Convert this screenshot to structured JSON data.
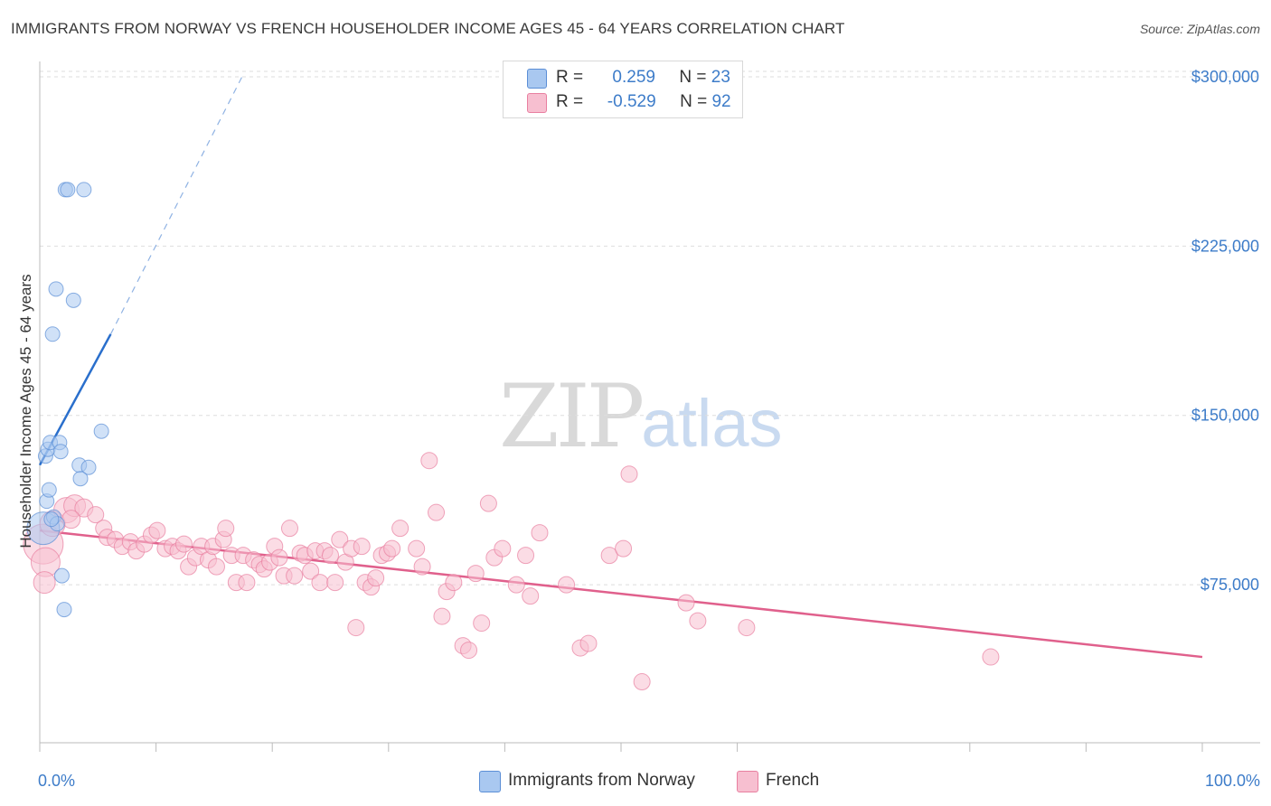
{
  "title": "IMMIGRANTS FROM NORWAY VS FRENCH HOUSEHOLDER INCOME AGES 45 - 64 YEARS CORRELATION CHART",
  "source": "Source: ZipAtlas.com",
  "watermark": {
    "zip": "ZIP",
    "atlas": "atlas"
  },
  "legend": {
    "rows": [
      {
        "r_label": "R =",
        "r_value": "0.259",
        "n_label": "N =",
        "n_value": "23",
        "color": "#a9c8f0",
        "stroke": "#5b8ed6"
      },
      {
        "r_label": "R =",
        "r_value": "-0.529",
        "n_label": "N =",
        "n_value": "92",
        "color": "#f7bfd0",
        "stroke": "#e87fa0"
      }
    ]
  },
  "bottom_legend": [
    {
      "label": "Immigrants from Norway",
      "color": "#a9c8f0",
      "stroke": "#5b8ed6"
    },
    {
      "label": "French",
      "color": "#f7bfd0",
      "stroke": "#e87fa0"
    }
  ],
  "chart_data": {
    "type": "scatter",
    "title": "IMMIGRANTS FROM NORWAY VS FRENCH HOUSEHOLDER INCOME AGES 45 - 64 YEARS CORRELATION CHART",
    "xlabel": "",
    "ylabel": "Householder Income Ages 45 - 64 years",
    "xlim": [
      0,
      100
    ],
    "ylim": [
      5000,
      310000
    ],
    "x_tick_labels": [
      {
        "value": 0,
        "label": "0.0%"
      },
      {
        "value": 100,
        "label": "100.0%"
      }
    ],
    "y_ticks": [
      {
        "value": 75000,
        "label": "$75,000"
      },
      {
        "value": 150000,
        "label": "$150,000"
      },
      {
        "value": 225000,
        "label": "$225,000"
      },
      {
        "value": 300000,
        "label": "$300,000"
      }
    ],
    "series": [
      {
        "name": "Immigrants from Norway",
        "color": "#a9c8f0",
        "stroke": "#5b8ed6",
        "trend": {
          "x0": 0,
          "y0": 128000,
          "x1": 6.1,
          "y1": 186000,
          "dash_to_x": 17.4,
          "dash_to_y": 300000,
          "color": "#2a6fcc"
        },
        "points": [
          [
            0.3,
            100000,
            18
          ],
          [
            0.5,
            132000,
            8
          ],
          [
            0.7,
            135000,
            8
          ],
          [
            0.9,
            138000,
            8
          ],
          [
            0.6,
            112000,
            8
          ],
          [
            0.8,
            117000,
            8
          ],
          [
            1.2,
            105000,
            8
          ],
          [
            1.5,
            102000,
            8
          ],
          [
            1.7,
            138000,
            8
          ],
          [
            1.8,
            134000,
            8
          ],
          [
            1.1,
            186000,
            8
          ],
          [
            1.4,
            206000,
            8
          ],
          [
            2.2,
            250000,
            8
          ],
          [
            2.4,
            250000,
            8
          ],
          [
            3.8,
            250000,
            8
          ],
          [
            2.9,
            201000,
            8
          ],
          [
            3.4,
            128000,
            8
          ],
          [
            4.2,
            127000,
            8
          ],
          [
            3.5,
            122000,
            8
          ],
          [
            5.3,
            143000,
            8
          ],
          [
            1.9,
            79000,
            8
          ],
          [
            2.1,
            64000,
            8
          ],
          [
            1.0,
            104000,
            8
          ]
        ]
      },
      {
        "name": "French",
        "color": "#f7bfd0",
        "stroke": "#e87fa0",
        "trend": {
          "x0": 0,
          "y0": 99000,
          "x1": 100,
          "y1": 43000,
          "color": "#e0608c"
        },
        "points": [
          [
            0.3,
            93000,
            22
          ],
          [
            0.5,
            85000,
            16
          ],
          [
            0.4,
            76000,
            12
          ],
          [
            1.1,
            102000,
            14
          ],
          [
            2.3,
            108000,
            14
          ],
          [
            3.0,
            110000,
            12
          ],
          [
            3.8,
            109000,
            10
          ],
          [
            2.7,
            104000,
            10
          ],
          [
            4.8,
            106000,
            9
          ],
          [
            5.5,
            100000,
            9
          ],
          [
            5.8,
            96000,
            9
          ],
          [
            6.5,
            95000,
            9
          ],
          [
            7.1,
            92000,
            9
          ],
          [
            7.8,
            94000,
            9
          ],
          [
            8.3,
            90000,
            9
          ],
          [
            9.0,
            93000,
            9
          ],
          [
            9.6,
            97000,
            9
          ],
          [
            10.1,
            99000,
            9
          ],
          [
            10.8,
            91000,
            9
          ],
          [
            11.4,
            92000,
            9
          ],
          [
            11.9,
            90000,
            9
          ],
          [
            12.4,
            93000,
            9
          ],
          [
            12.8,
            83000,
            9
          ],
          [
            13.4,
            87000,
            9
          ],
          [
            13.9,
            92000,
            9
          ],
          [
            14.5,
            86000,
            9
          ],
          [
            14.9,
            92000,
            9
          ],
          [
            15.2,
            83000,
            9
          ],
          [
            15.8,
            95000,
            9
          ],
          [
            16.0,
            100000,
            9
          ],
          [
            16.5,
            88000,
            9
          ],
          [
            16.9,
            76000,
            9
          ],
          [
            17.5,
            88000,
            9
          ],
          [
            17.8,
            76000,
            9
          ],
          [
            18.4,
            86000,
            9
          ],
          [
            18.9,
            84000,
            9
          ],
          [
            19.3,
            82000,
            9
          ],
          [
            19.8,
            85000,
            9
          ],
          [
            20.2,
            92000,
            9
          ],
          [
            20.6,
            87000,
            9
          ],
          [
            21.0,
            79000,
            9
          ],
          [
            21.5,
            100000,
            9
          ],
          [
            21.9,
            79000,
            9
          ],
          [
            22.4,
            89000,
            9
          ],
          [
            22.8,
            88000,
            9
          ],
          [
            23.3,
            81000,
            9
          ],
          [
            23.7,
            90000,
            9
          ],
          [
            24.1,
            76000,
            9
          ],
          [
            24.5,
            90000,
            9
          ],
          [
            25.0,
            88000,
            9
          ],
          [
            25.4,
            76000,
            9
          ],
          [
            25.8,
            95000,
            9
          ],
          [
            26.3,
            85000,
            9
          ],
          [
            26.8,
            91000,
            9
          ],
          [
            27.2,
            56000,
            9
          ],
          [
            27.7,
            92000,
            9
          ],
          [
            28.0,
            76000,
            9
          ],
          [
            28.5,
            74000,
            9
          ],
          [
            28.9,
            78000,
            9
          ],
          [
            29.4,
            88000,
            9
          ],
          [
            29.9,
            89000,
            9
          ],
          [
            30.3,
            91000,
            9
          ],
          [
            31.0,
            100000,
            9
          ],
          [
            32.4,
            91000,
            9
          ],
          [
            32.9,
            83000,
            9
          ],
          [
            33.5,
            130000,
            9
          ],
          [
            34.1,
            107000,
            9
          ],
          [
            34.6,
            61000,
            9
          ],
          [
            35.0,
            72000,
            9
          ],
          [
            35.6,
            76000,
            9
          ],
          [
            36.4,
            48000,
            9
          ],
          [
            36.9,
            46000,
            9
          ],
          [
            37.5,
            80000,
            9
          ],
          [
            38.0,
            58000,
            9
          ],
          [
            38.6,
            111000,
            9
          ],
          [
            39.1,
            87000,
            9
          ],
          [
            39.8,
            91000,
            9
          ],
          [
            41.0,
            75000,
            9
          ],
          [
            41.8,
            88000,
            9
          ],
          [
            42.2,
            70000,
            9
          ],
          [
            43.0,
            98000,
            9
          ],
          [
            45.3,
            75000,
            9
          ],
          [
            46.5,
            47000,
            9
          ],
          [
            47.2,
            49000,
            9
          ],
          [
            49.0,
            88000,
            9
          ],
          [
            50.2,
            91000,
            9
          ],
          [
            50.7,
            124000,
            9
          ],
          [
            51.8,
            32000,
            9
          ],
          [
            55.6,
            67000,
            9
          ],
          [
            56.6,
            59000,
            9
          ],
          [
            60.8,
            56000,
            9
          ],
          [
            81.8,
            43000,
            9
          ]
        ]
      }
    ]
  }
}
